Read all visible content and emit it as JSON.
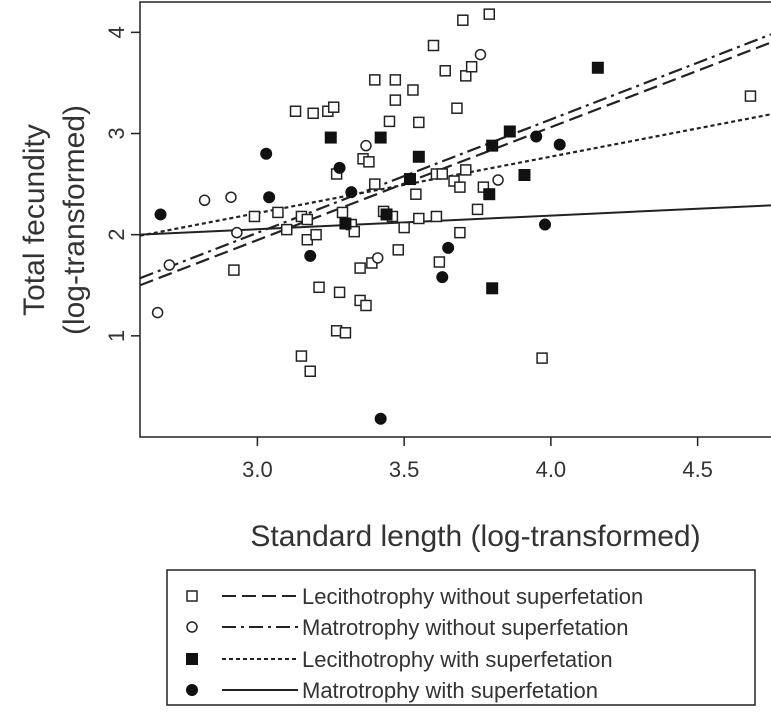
{
  "chart_data": {
    "type": "scatter",
    "xlabel": "Standard length (log-transformed)",
    "ylabel_lines": [
      "Total fecundity",
      "(log-transformed)"
    ],
    "xlim": [
      2.6,
      4.75
    ],
    "ylim": [
      0.0,
      4.3
    ],
    "xticks": [
      3.0,
      3.5,
      4.0,
      4.5
    ],
    "xtick_labels": [
      "3.0",
      "3.5",
      "4.0",
      "4.5"
    ],
    "yticks": [
      1,
      2,
      3,
      4
    ],
    "ytick_labels": [
      "1",
      "2",
      "3",
      "4"
    ],
    "grid": false,
    "legend_position": "bottom",
    "series": [
      {
        "name": "Lecithotrophy without superfetation",
        "marker": "open-square",
        "line_style": "dashed",
        "fit_line": [
          [
            2.6,
            1.5
          ],
          [
            4.75,
            3.9
          ]
        ],
        "points": [
          [
            2.92,
            1.65
          ],
          [
            2.99,
            2.18
          ],
          [
            3.07,
            2.22
          ],
          [
            3.1,
            2.05
          ],
          [
            3.13,
            3.22
          ],
          [
            3.15,
            2.18
          ],
          [
            3.15,
            0.8
          ],
          [
            3.17,
            2.15
          ],
          [
            3.17,
            1.95
          ],
          [
            3.18,
            0.65
          ],
          [
            3.19,
            3.2
          ],
          [
            3.2,
            2.0
          ],
          [
            3.21,
            1.48
          ],
          [
            3.24,
            3.22
          ],
          [
            3.26,
            3.26
          ],
          [
            3.27,
            2.6
          ],
          [
            3.27,
            1.05
          ],
          [
            3.28,
            1.43
          ],
          [
            3.29,
            2.22
          ],
          [
            3.3,
            1.03
          ],
          [
            3.32,
            2.1
          ],
          [
            3.33,
            2.03
          ],
          [
            3.35,
            1.67
          ],
          [
            3.35,
            1.35
          ],
          [
            3.36,
            2.75
          ],
          [
            3.37,
            1.3
          ],
          [
            3.38,
            2.72
          ],
          [
            3.39,
            1.72
          ],
          [
            3.4,
            3.53
          ],
          [
            3.4,
            2.5
          ],
          [
            3.43,
            2.23
          ],
          [
            3.45,
            3.12
          ],
          [
            3.46,
            2.18
          ],
          [
            3.47,
            3.53
          ],
          [
            3.47,
            3.33
          ],
          [
            3.48,
            1.85
          ],
          [
            3.5,
            2.07
          ],
          [
            3.53,
            3.43
          ],
          [
            3.54,
            2.4
          ],
          [
            3.55,
            2.16
          ],
          [
            3.55,
            3.11
          ],
          [
            3.6,
            3.87
          ],
          [
            3.61,
            2.6
          ],
          [
            3.61,
            2.18
          ],
          [
            3.62,
            1.73
          ],
          [
            3.63,
            2.6
          ],
          [
            3.64,
            3.62
          ],
          [
            3.67,
            2.53
          ],
          [
            3.68,
            3.25
          ],
          [
            3.69,
            2.47
          ],
          [
            3.69,
            2.02
          ],
          [
            3.7,
            4.12
          ],
          [
            3.71,
            3.57
          ],
          [
            3.71,
            2.64
          ],
          [
            3.73,
            3.66
          ],
          [
            3.75,
            2.25
          ],
          [
            3.77,
            2.47
          ],
          [
            3.79,
            4.18
          ],
          [
            3.97,
            0.78
          ],
          [
            4.68,
            3.37
          ]
        ]
      },
      {
        "name": "Matrotrophy without superfetation",
        "marker": "open-circle",
        "line_style": "dashdot",
        "fit_line": [
          [
            2.6,
            1.57
          ],
          [
            4.75,
            3.98
          ]
        ],
        "points": [
          [
            2.66,
            1.23
          ],
          [
            2.7,
            1.7
          ],
          [
            2.82,
            2.34
          ],
          [
            2.91,
            2.37
          ],
          [
            2.93,
            2.02
          ],
          [
            3.37,
            2.88
          ],
          [
            3.41,
            1.77
          ],
          [
            3.76,
            3.78
          ],
          [
            3.82,
            2.54
          ]
        ]
      },
      {
        "name": "Lecithotrophy with superfetation",
        "marker": "filled-square",
        "line_style": "dotted",
        "fit_line": [
          [
            2.6,
            1.99
          ],
          [
            4.75,
            3.19
          ]
        ],
        "points": [
          [
            3.25,
            2.96
          ],
          [
            3.3,
            2.11
          ],
          [
            3.42,
            2.96
          ],
          [
            3.44,
            2.2
          ],
          [
            3.52,
            2.55
          ],
          [
            3.55,
            2.77
          ],
          [
            3.79,
            2.4
          ],
          [
            3.8,
            1.47
          ],
          [
            3.8,
            2.88
          ],
          [
            3.86,
            3.02
          ],
          [
            3.91,
            2.59
          ],
          [
            4.16,
            3.65
          ]
        ]
      },
      {
        "name": "Matrotrophy with superfetation",
        "marker": "filled-circle",
        "line_style": "solid",
        "fit_line": [
          [
            2.6,
            2.0
          ],
          [
            4.75,
            2.29
          ]
        ],
        "points": [
          [
            2.67,
            2.2
          ],
          [
            3.03,
            2.8
          ],
          [
            3.04,
            2.37
          ],
          [
            3.18,
            1.79
          ],
          [
            3.28,
            2.66
          ],
          [
            3.32,
            2.42
          ],
          [
            3.42,
            0.18
          ],
          [
            3.63,
            1.58
          ],
          [
            3.65,
            1.87
          ],
          [
            3.95,
            2.97
          ],
          [
            3.98,
            2.1
          ],
          [
            4.03,
            2.89
          ]
        ]
      }
    ]
  }
}
